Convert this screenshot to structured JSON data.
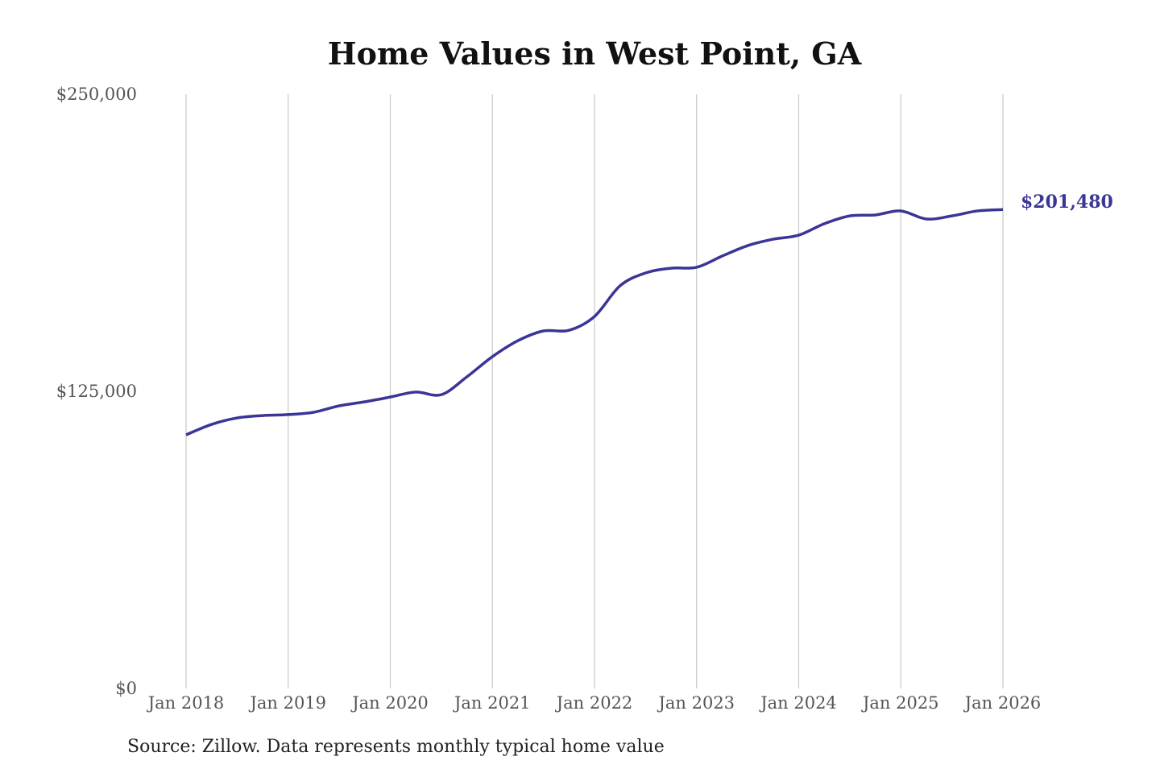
{
  "chart_data": {
    "type": "line",
    "title": "Home Values in West Point, GA",
    "source": "Source: Zillow. Data represents monthly typical home value",
    "xlabel": "",
    "ylabel": "",
    "ylim": [
      0,
      250000
    ],
    "y_ticks": [
      0,
      125000,
      250000
    ],
    "y_tick_labels": [
      "$0",
      "$125,000",
      "$250,000"
    ],
    "x_ticks": [
      "2018-01",
      "2019-01",
      "2020-01",
      "2021-01",
      "2022-01",
      "2023-01",
      "2024-01",
      "2025-01",
      "2026-01"
    ],
    "x_tick_labels": [
      "Jan 2018",
      "Jan 2019",
      "Jan 2020",
      "Jan 2021",
      "Jan 2022",
      "Jan 2023",
      "Jan 2024",
      "Jan 2025",
      "Jan 2026"
    ],
    "grid": "vertical lines at x ticks",
    "line_color": "#3a3596",
    "end_label": "$201,480",
    "series": [
      {
        "x": [
          "2018-01",
          "2018-04",
          "2018-07",
          "2018-10",
          "2019-01",
          "2019-04",
          "2019-07",
          "2019-10",
          "2020-01",
          "2020-04",
          "2020-07",
          "2020-10",
          "2021-01",
          "2021-04",
          "2021-07",
          "2021-10",
          "2022-01",
          "2022-04",
          "2022-07",
          "2022-10",
          "2023-01",
          "2023-04",
          "2023-07",
          "2023-10",
          "2024-01",
          "2024-04",
          "2024-07",
          "2024-10",
          "2025-01",
          "2025-04",
          "2025-07",
          "2025-10",
          "2026-01"
        ],
        "values": [
          106700,
          111100,
          113800,
          114800,
          115200,
          116200,
          118900,
          120600,
          122600,
          124700,
          123600,
          131100,
          139600,
          146300,
          150400,
          150700,
          156500,
          169400,
          174800,
          176800,
          177200,
          181900,
          186300,
          189000,
          190700,
          195500,
          198800,
          199200,
          200900,
          197500,
          198800,
          200900,
          201480
        ]
      }
    ]
  }
}
